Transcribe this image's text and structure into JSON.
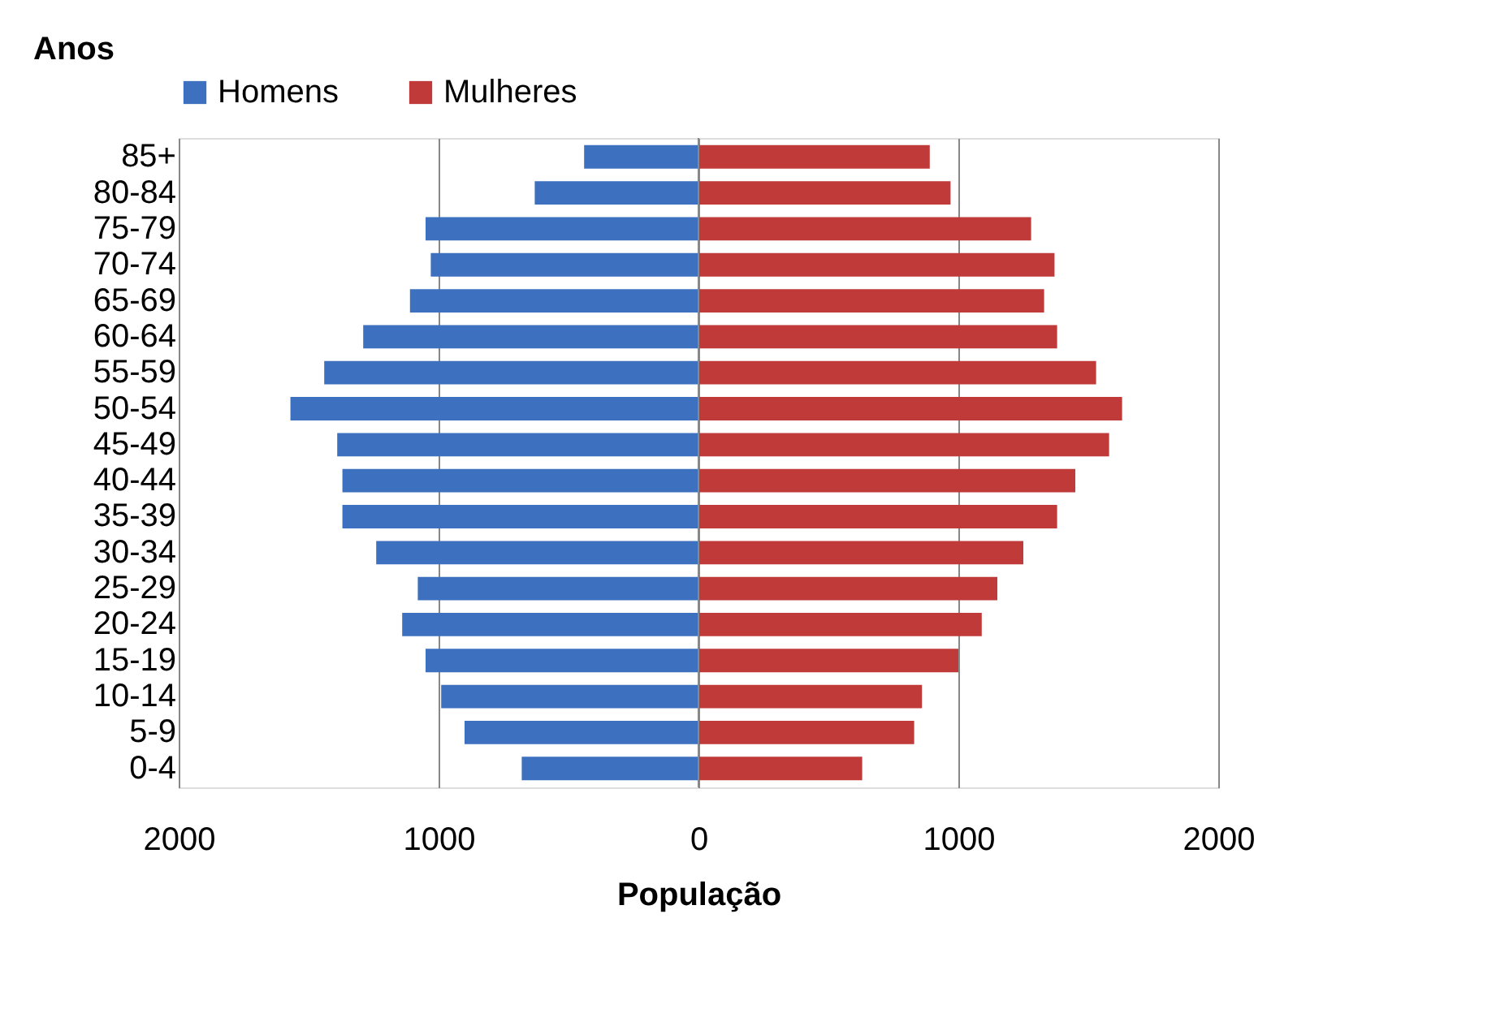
{
  "chart_data": {
    "type": "bar",
    "orientation": "horizontal",
    "xlabel": "População",
    "ylabel": "Anos",
    "categories": [
      "85+",
      "80-84",
      "75-79",
      "70-74",
      "65-69",
      "60-64",
      "55-59",
      "50-54",
      "45-49",
      "40-44",
      "35-39",
      "30-34",
      "25-29",
      "20-24",
      "15-19",
      "10-14",
      "5-9",
      "0-4"
    ],
    "series": [
      {
        "name": "Homens",
        "color": "#3d71c0",
        "values": [
          -440,
          -630,
          -1050,
          -1030,
          -1110,
          -1290,
          -1440,
          -1570,
          -1390,
          -1370,
          -1370,
          -1240,
          -1080,
          -1140,
          -1050,
          -990,
          -900,
          -680
        ]
      },
      {
        "name": "Mulheres",
        "color": "#c03a3a",
        "values": [
          890,
          970,
          1280,
          1370,
          1330,
          1380,
          1530,
          1630,
          1580,
          1450,
          1380,
          1250,
          1150,
          1090,
          1000,
          860,
          830,
          630
        ]
      }
    ],
    "xlim": [
      -2000,
      2000
    ],
    "xticks": [
      {
        "value": -2000,
        "label": "2000"
      },
      {
        "value": -1000,
        "label": "1000"
      },
      0,
      1000,
      2000
    ],
    "grid": "x",
    "legend": "top",
    "stacked": true
  }
}
